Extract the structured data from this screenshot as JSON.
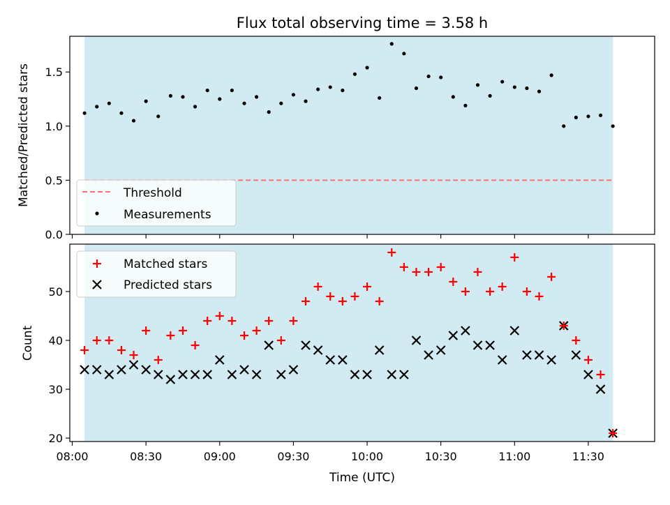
{
  "figure": {
    "title": "Flux total observing time = 3.58 h",
    "xlabel": "Time (UTC)"
  },
  "chart_data": [
    {
      "type": "scatter",
      "panel": "top",
      "title": "Flux total observing time = 3.58 h",
      "ylabel": "Matched/Predicted stars",
      "xlim": [
        "07:59",
        "11:57"
      ],
      "ylim": [
        0.0,
        1.83
      ],
      "yticks": [
        0.0,
        0.5,
        1.0,
        1.5
      ],
      "ytick_labels": [
        "0.0",
        "0.5",
        "1.0",
        "1.5"
      ],
      "xticks": [
        "08:00",
        "08:30",
        "09:00",
        "09:30",
        "10:00",
        "10:30",
        "11:00",
        "11:30"
      ],
      "observing_window": [
        "08:05",
        "11:40"
      ],
      "threshold": 0.5,
      "legend": {
        "placement": "lower-left",
        "entries": [
          "Threshold",
          "Measurements"
        ]
      },
      "grid": false,
      "colors": {
        "threshold": "#ff7070",
        "measurements": "#000000",
        "window": "#add8e6"
      },
      "series": [
        {
          "name": "Measurements",
          "x": [
            "08:05",
            "08:10",
            "08:15",
            "08:20",
            "08:25",
            "08:30",
            "08:35",
            "08:40",
            "08:45",
            "08:50",
            "08:55",
            "09:00",
            "09:05",
            "09:10",
            "09:15",
            "09:20",
            "09:25",
            "09:30",
            "09:35",
            "09:40",
            "09:45",
            "09:50",
            "09:55",
            "10:00",
            "10:05",
            "10:10",
            "10:15",
            "10:20",
            "10:25",
            "10:30",
            "10:35",
            "10:40",
            "10:45",
            "10:50",
            "10:55",
            "11:00",
            "11:05",
            "11:10",
            "11:15",
            "11:20",
            "11:25",
            "11:30",
            "11:35",
            "11:40"
          ],
          "values": [
            1.12,
            1.18,
            1.21,
            1.12,
            1.05,
            1.23,
            1.09,
            1.28,
            1.27,
            1.18,
            1.33,
            1.25,
            1.33,
            1.21,
            1.27,
            1.13,
            1.21,
            1.29,
            1.23,
            1.34,
            1.36,
            1.33,
            1.48,
            1.54,
            1.26,
            1.76,
            1.67,
            1.35,
            1.46,
            1.45,
            1.27,
            1.19,
            1.38,
            1.28,
            1.41,
            1.36,
            1.35,
            1.32,
            1.47,
            1.0,
            1.08,
            1.09,
            1.1,
            1.0
          ]
        }
      ]
    },
    {
      "type": "scatter",
      "panel": "bottom",
      "xlabel": "Time (UTC)",
      "ylabel": "Count",
      "xlim": [
        "07:59",
        "11:57"
      ],
      "ylim": [
        19.3,
        59.7
      ],
      "yticks": [
        20,
        30,
        40,
        50
      ],
      "ytick_labels": [
        "20",
        "30",
        "40",
        "50"
      ],
      "xticks": [
        "08:00",
        "08:30",
        "09:00",
        "09:30",
        "10:00",
        "10:30",
        "11:00",
        "11:30"
      ],
      "xtick_labels": [
        "08:00",
        "08:30",
        "09:00",
        "09:30",
        "10:00",
        "10:30",
        "11:00",
        "11:30"
      ],
      "observing_window": [
        "08:05",
        "11:40"
      ],
      "legend": {
        "placement": "upper-left",
        "entries": [
          "Matched stars",
          "Predicted stars"
        ]
      },
      "grid": false,
      "colors": {
        "matched": "#ff0000",
        "predicted": "#000000",
        "window": "#add8e6"
      },
      "x": [
        "08:05",
        "08:10",
        "08:15",
        "08:20",
        "08:25",
        "08:30",
        "08:35",
        "08:40",
        "08:45",
        "08:50",
        "08:55",
        "09:00",
        "09:05",
        "09:10",
        "09:15",
        "09:20",
        "09:25",
        "09:30",
        "09:35",
        "09:40",
        "09:45",
        "09:50",
        "09:55",
        "10:00",
        "10:05",
        "10:10",
        "10:15",
        "10:20",
        "10:25",
        "10:30",
        "10:35",
        "10:40",
        "10:45",
        "10:50",
        "10:55",
        "11:00",
        "11:05",
        "11:10",
        "11:15",
        "11:20",
        "11:25",
        "11:30",
        "11:35",
        "11:40"
      ],
      "series": [
        {
          "name": "Matched stars",
          "marker": "plus",
          "values": [
            38,
            40,
            40,
            38,
            37,
            42,
            36,
            41,
            42,
            39,
            44,
            45,
            44,
            41,
            42,
            44,
            40,
            44,
            48,
            51,
            49,
            48,
            49,
            51,
            48,
            58,
            55,
            54,
            54,
            55,
            52,
            50,
            54,
            50,
            51,
            57,
            50,
            49,
            53,
            43,
            40,
            36,
            33,
            21
          ]
        },
        {
          "name": "Predicted stars",
          "marker": "x",
          "values": [
            34,
            34,
            33,
            34,
            35,
            34,
            33,
            32,
            33,
            33,
            33,
            36,
            33,
            34,
            33,
            39,
            33,
            34,
            39,
            38,
            36,
            36,
            33,
            33,
            38,
            33,
            33,
            40,
            37,
            38,
            41,
            42,
            39,
            39,
            36,
            42,
            37,
            37,
            36,
            43,
            37,
            33,
            30,
            21
          ]
        }
      ]
    }
  ]
}
